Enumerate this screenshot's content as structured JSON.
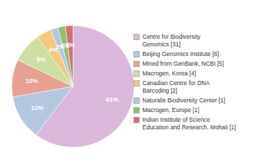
{
  "chart_data": {
    "type": "pie",
    "categories": [
      "Centre for Biodiversity\nGenomics [31]",
      "Beijing Genomics Institute [6]",
      "Mined from GenBank, NCBI [5]",
      "Macrogen, Korea [4]",
      "Canadian Centre for DNA\nBarcoding [2]",
      "Naturalis Biodiversity Center [1]",
      "Macrogen, Europe [1]",
      "Indian Institute of Science\nEducation and Research, Mohali [1]"
    ],
    "values": [
      61,
      12,
      10,
      8,
      4,
      2,
      2,
      2
    ],
    "value_labels": [
      "61%",
      "12%",
      "10%",
      "8%",
      "4%",
      "2%",
      "2%",
      "2%"
    ],
    "colors": [
      "#dbb8db",
      "#b3c8e0",
      "#e8a090",
      "#cde0a0",
      "#f5c87a",
      "#b3c8e0",
      "#90c078",
      "#d07070"
    ],
    "data_labels": true,
    "legend": "right"
  }
}
